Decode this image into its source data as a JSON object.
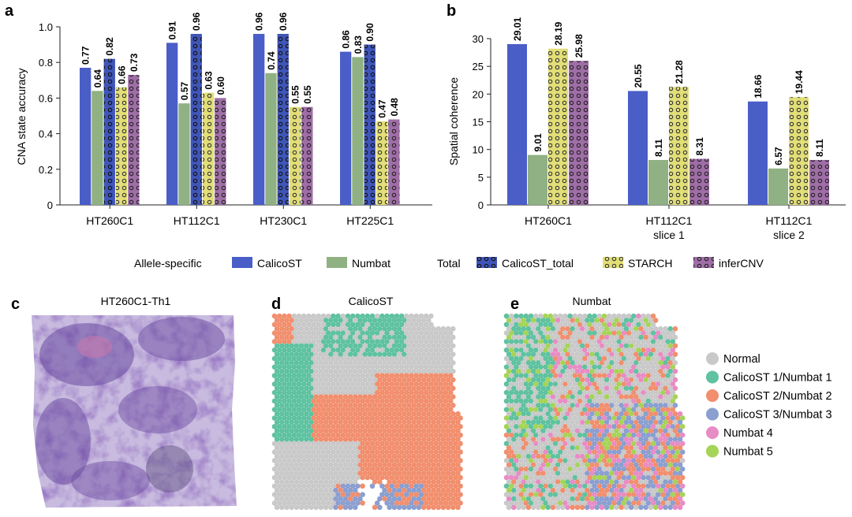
{
  "panel_labels": {
    "a": "a",
    "b": "b",
    "c": "c",
    "d": "d",
    "e": "e"
  },
  "colors": {
    "CalicoST": "#4a5ec8",
    "Numbat": "#8fb183",
    "CalicoST_total": "#3f55b8",
    "STARCH": "#e2de78",
    "inferCNV": "#9f6ea6",
    "Normal": "#c9c9c9",
    "CalicoST 1/Numbat 1": "#5fc2a0",
    "CalicoST 2/Numbat 2": "#f18f6e",
    "CalicoST 3/Numbat 3": "#8b9fd0",
    "Numbat 4": "#e88cc6",
    "Numbat 5": "#a6d457",
    "he_stain": "#7b5aa8"
  },
  "legend": {
    "group1_title": "Allele-specific",
    "group2_title": "Total",
    "items": [
      "CalicoST",
      "Numbat",
      "CalicoST_total",
      "STARCH",
      "inferCNV"
    ]
  },
  "chart_data": [
    {
      "panel": "a",
      "type": "bar",
      "ylabel": "CNA state accuracy",
      "ylim": [
        0,
        1.0
      ],
      "yticks": [
        "0",
        "0.2",
        "0.4",
        "0.6",
        "0.8",
        "1.0"
      ],
      "categories": [
        "HT260C1",
        "HT112C1",
        "HT230C1",
        "HT225C1"
      ],
      "series": [
        {
          "name": "CalicoST",
          "values": [
            0.77,
            0.91,
            0.96,
            0.86
          ],
          "labels": [
            "0.77",
            "0.91",
            "0.96",
            "0.86"
          ]
        },
        {
          "name": "Numbat",
          "values": [
            0.64,
            0.57,
            0.74,
            0.83
          ],
          "labels": [
            "0.64",
            "0.57",
            "0.74",
            "0.83"
          ]
        },
        {
          "name": "CalicoST_total",
          "values": [
            0.82,
            0.96,
            0.96,
            0.9
          ],
          "labels": [
            "0.82",
            "0.96",
            "0.96",
            "0.90"
          ]
        },
        {
          "name": "STARCH",
          "values": [
            0.66,
            0.63,
            0.55,
            0.47
          ],
          "labels": [
            "0.66",
            "0.63",
            "0.55",
            "0.47"
          ]
        },
        {
          "name": "inferCNV",
          "values": [
            0.73,
            0.6,
            0.55,
            0.48
          ],
          "labels": [
            "0.73",
            "0.60",
            "0.55",
            "0.48"
          ]
        }
      ]
    },
    {
      "panel": "b",
      "type": "bar",
      "ylabel": "Spatial coherence",
      "ylim": [
        0,
        30
      ],
      "yticks": [
        "0",
        "5",
        "10",
        "15",
        "20",
        "25",
        "30"
      ],
      "categories": [
        "HT260C1",
        "HT112C1\nslice 1",
        "HT112C1\nslice 2"
      ],
      "series": [
        {
          "name": "CalicoST",
          "values": [
            29.01,
            20.55,
            18.66
          ],
          "labels": [
            "29.01",
            "20.55",
            "18.66"
          ]
        },
        {
          "name": "Numbat",
          "values": [
            9.01,
            8.11,
            6.57
          ],
          "labels": [
            "9.01",
            "8.11",
            "6.57"
          ]
        },
        {
          "name": "STARCH",
          "values": [
            28.19,
            21.28,
            19.44
          ],
          "labels": [
            "28.19",
            "21.28",
            "19.44"
          ]
        },
        {
          "name": "inferCNV",
          "values": [
            25.98,
            8.31,
            8.11
          ],
          "labels": [
            "25.98",
            "8.31",
            "8.11"
          ]
        }
      ]
    }
  ],
  "panel_c": {
    "title": "HT260C1-Th1"
  },
  "panel_d": {
    "title": "CalicoST"
  },
  "panel_e": {
    "title": "Numbat"
  },
  "clone_legend": [
    "Normal",
    "CalicoST 1/Numbat 1",
    "CalicoST 2/Numbat 2",
    "CalicoST 3/Numbat 3",
    "Numbat 4",
    "Numbat 5"
  ]
}
